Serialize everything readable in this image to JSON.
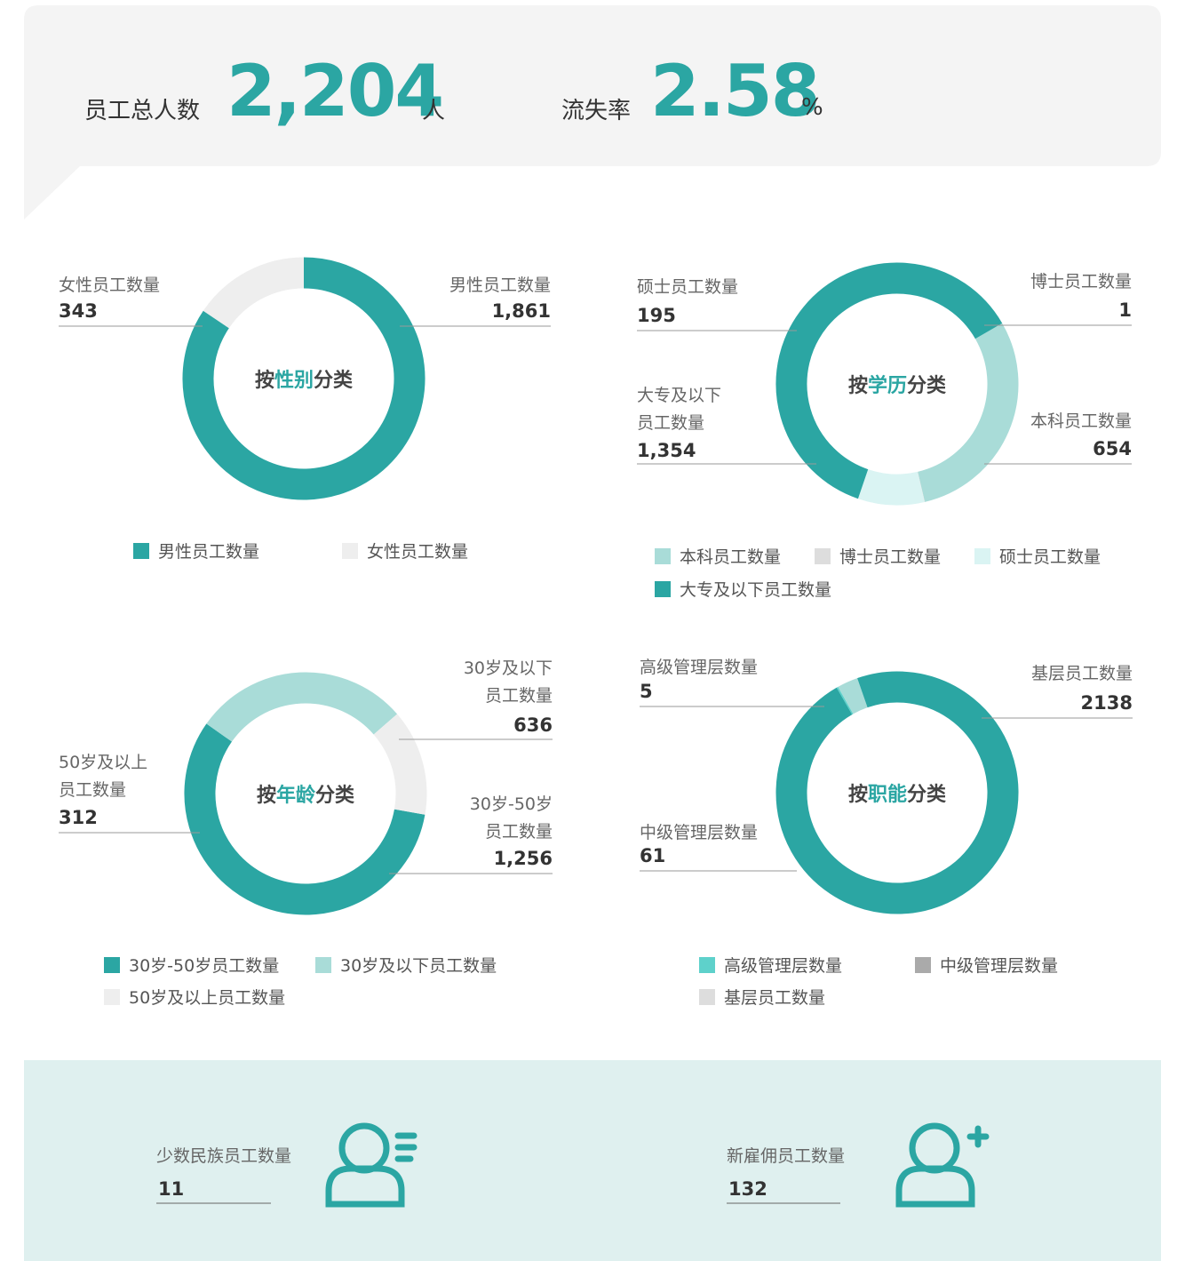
{
  "header": {
    "total_label": "员工总人数",
    "total": "2,204",
    "total_unit": "人",
    "rate_label": "流失率",
    "rate": "2.58",
    "rate_unit": "%"
  },
  "chart_data": [
    {
      "type": "pie",
      "title_prefix": "按",
      "title_key": "性别",
      "title_suffix": "分类",
      "categories": [
        "男性员工数量",
        "女性员工数量"
      ],
      "values": [
        1861,
        343
      ],
      "value_labels": [
        "1,861",
        "343"
      ],
      "colors": [
        "#2ba6a3",
        "#eeeeee"
      ]
    },
    {
      "type": "pie",
      "title_prefix": "按",
      "title_key": "学历",
      "title_suffix": "分类",
      "categories": [
        "本科员工数量",
        "博士员工数量",
        "硕士员工数量",
        "大专及以下员工数量"
      ],
      "values": [
        654,
        1,
        195,
        1354
      ],
      "value_labels": [
        "654",
        "1",
        "195",
        "1,354"
      ],
      "colors": [
        "#a9dcd8",
        "#dddddd",
        "#daf4f3",
        "#2ba6a3"
      ]
    },
    {
      "type": "pie",
      "title_prefix": "按",
      "title_key": "年龄",
      "title_suffix": "分类",
      "categories": [
        "30岁-50岁员工数量",
        "30岁及以下员工数量",
        "50岁及以上员工数量"
      ],
      "values": [
        1256,
        636,
        312
      ],
      "value_labels": [
        "1,256",
        "636",
        "312"
      ],
      "colors": [
        "#2ba6a3",
        "#a9dcd8",
        "#eeeeee"
      ]
    },
    {
      "type": "pie",
      "title_prefix": "按",
      "title_key": "职能",
      "title_suffix": "分类",
      "categories": [
        "高级管理层数量",
        "中级管理层数量",
        "基层员工数量"
      ],
      "values": [
        5,
        61,
        2138
      ],
      "value_labels": [
        "5",
        "61",
        "2138"
      ],
      "colors": [
        "#5ed1cb",
        "#a9dcd8",
        "#2ba6a3"
      ],
      "legend_colors": [
        "#5ed1cb",
        "#aaaaaa",
        "#dddddd"
      ]
    }
  ],
  "footer": [
    {
      "label": "少数民族员工数量",
      "value": "11"
    },
    {
      "label": "新雇佣员工数量",
      "value": "132"
    }
  ]
}
